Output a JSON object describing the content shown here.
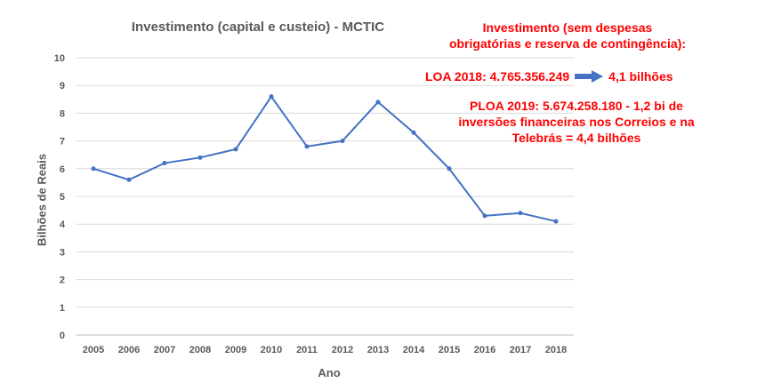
{
  "chart_data": {
    "type": "line",
    "title": "Investimento (capital e custeio) - MCTIC",
    "xlabel": "Ano",
    "ylabel": "Bilhões de Reais",
    "ylim": [
      0,
      10
    ],
    "yticks": [
      0,
      1,
      2,
      3,
      4,
      5,
      6,
      7,
      8,
      9,
      10
    ],
    "grid": true,
    "categories": [
      "2005",
      "2006",
      "2007",
      "2008",
      "2009",
      "2010",
      "2011",
      "2012",
      "2013",
      "2014",
      "2015",
      "2016",
      "2017",
      "2018"
    ],
    "series": [
      {
        "values": [
          6.0,
          5.6,
          6.2,
          6.4,
          6.7,
          8.6,
          6.8,
          7.0,
          8.4,
          7.3,
          6.0,
          4.3,
          4.4,
          4.1
        ],
        "color": "#4472c4"
      }
    ]
  },
  "annotations": {
    "invest_heading_line1": "Investimento (sem despesas",
    "invest_heading_line2": "obrigatórias e reserva de contingência):",
    "loa_text": "LOA 2018: 4.765.356.249",
    "loa_result": "4,1 bilhões",
    "ploa_line1": "PLOA 2019:  5.674.258.180 - 1,2 bi de",
    "ploa_line2": "inversões financeiras nos Correios e na",
    "ploa_line3": "Telebrás = 4,4 bilhões",
    "text_color": "#ff0000",
    "arrow_color": "#4472c4",
    "arrow_icon": "arrow-right-icon"
  }
}
